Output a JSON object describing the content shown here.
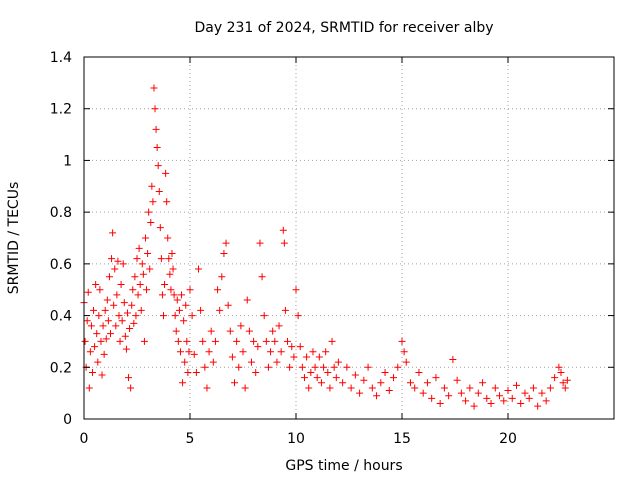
{
  "chart_data": {
    "type": "scatter",
    "title": "Day 231 of 2024, SRMTID for receiver alby",
    "xlabel": "GPS time / hours",
    "ylabel": "SRMTID / TECUs",
    "xlim": [
      0,
      25
    ],
    "ylim": [
      0,
      1.4
    ],
    "xticks": [
      0,
      5,
      10,
      15,
      20
    ],
    "xtick_labels": [
      "0",
      "5",
      "10",
      "15",
      "20"
    ],
    "yticks": [
      0,
      0.2,
      0.4,
      0.6,
      0.8,
      1.0,
      1.2,
      1.4
    ],
    "ytick_labels": [
      "0",
      "0.2",
      "0.4",
      "0.6",
      "0.8",
      "1",
      "1.2",
      "1.4"
    ],
    "grid": true,
    "marker": "+",
    "color": "#ff0000",
    "series": [
      {
        "name": "SRMTID",
        "points": [
          [
            0.0,
            0.45
          ],
          [
            0.05,
            0.3
          ],
          [
            0.1,
            0.2
          ],
          [
            0.15,
            0.38
          ],
          [
            0.2,
            0.49
          ],
          [
            0.25,
            0.12
          ],
          [
            0.3,
            0.26
          ],
          [
            0.35,
            0.36
          ],
          [
            0.4,
            0.18
          ],
          [
            0.45,
            0.42
          ],
          [
            0.5,
            0.28
          ],
          [
            0.55,
            0.52
          ],
          [
            0.6,
            0.33
          ],
          [
            0.65,
            0.22
          ],
          [
            0.7,
            0.4
          ],
          [
            0.75,
            0.5
          ],
          [
            0.8,
            0.3
          ],
          [
            0.85,
            0.17
          ],
          [
            0.9,
            0.36
          ],
          [
            0.95,
            0.25
          ],
          [
            1.0,
            0.42
          ],
          [
            1.05,
            0.31
          ],
          [
            1.1,
            0.46
          ],
          [
            1.15,
            0.38
          ],
          [
            1.2,
            0.55
          ],
          [
            1.25,
            0.33
          ],
          [
            1.3,
            0.62
          ],
          [
            1.35,
            0.72
          ],
          [
            1.4,
            0.44
          ],
          [
            1.45,
            0.58
          ],
          [
            1.5,
            0.36
          ],
          [
            1.55,
            0.48
          ],
          [
            1.6,
            0.61
          ],
          [
            1.65,
            0.4
          ],
          [
            1.7,
            0.3
          ],
          [
            1.75,
            0.52
          ],
          [
            1.8,
            0.38
          ],
          [
            1.85,
            0.6
          ],
          [
            1.9,
            0.45
          ],
          [
            1.95,
            0.32
          ],
          [
            2.0,
            0.27
          ],
          [
            2.05,
            0.41
          ],
          [
            2.1,
            0.16
          ],
          [
            2.15,
            0.35
          ],
          [
            2.2,
            0.12
          ],
          [
            2.25,
            0.44
          ],
          [
            2.3,
            0.5
          ],
          [
            2.35,
            0.37
          ],
          [
            2.4,
            0.55
          ],
          [
            2.45,
            0.4
          ],
          [
            2.5,
            0.62
          ],
          [
            2.55,
            0.48
          ],
          [
            2.6,
            0.66
          ],
          [
            2.65,
            0.52
          ],
          [
            2.7,
            0.42
          ],
          [
            2.75,
            0.6
          ],
          [
            2.8,
            0.56
          ],
          [
            2.85,
            0.3
          ],
          [
            2.9,
            0.7
          ],
          [
            2.95,
            0.5
          ],
          [
            3.0,
            0.64
          ],
          [
            3.05,
            0.8
          ],
          [
            3.1,
            0.58
          ],
          [
            3.15,
            0.76
          ],
          [
            3.2,
            0.9
          ],
          [
            3.25,
            0.84
          ],
          [
            3.3,
            1.28
          ],
          [
            3.35,
            1.2
          ],
          [
            3.4,
            1.12
          ],
          [
            3.45,
            1.05
          ],
          [
            3.5,
            0.98
          ],
          [
            3.55,
            0.88
          ],
          [
            3.6,
            0.74
          ],
          [
            3.65,
            0.62
          ],
          [
            3.7,
            0.48
          ],
          [
            3.75,
            0.4
          ],
          [
            3.8,
            0.52
          ],
          [
            3.85,
            0.95
          ],
          [
            3.9,
            0.84
          ],
          [
            3.95,
            0.7
          ],
          [
            4.0,
            0.62
          ],
          [
            4.05,
            0.56
          ],
          [
            4.1,
            0.5
          ],
          [
            4.15,
            0.64
          ],
          [
            4.2,
            0.58
          ],
          [
            4.25,
            0.48
          ],
          [
            4.3,
            0.4
          ],
          [
            4.35,
            0.34
          ],
          [
            4.4,
            0.46
          ],
          [
            4.45,
            0.3
          ],
          [
            4.5,
            0.42
          ],
          [
            4.55,
            0.26
          ],
          [
            4.6,
            0.48
          ],
          [
            4.65,
            0.14
          ],
          [
            4.7,
            0.38
          ],
          [
            4.75,
            0.22
          ],
          [
            4.8,
            0.44
          ],
          [
            4.85,
            0.3
          ],
          [
            4.9,
            0.18
          ],
          [
            4.95,
            0.26
          ],
          [
            5.0,
            0.5
          ],
          [
            5.1,
            0.4
          ],
          [
            5.2,
            0.25
          ],
          [
            5.3,
            0.18
          ],
          [
            5.4,
            0.58
          ],
          [
            5.5,
            0.42
          ],
          [
            5.6,
            0.3
          ],
          [
            5.7,
            0.2
          ],
          [
            5.8,
            0.12
          ],
          [
            5.9,
            0.26
          ],
          [
            6.0,
            0.34
          ],
          [
            6.1,
            0.22
          ],
          [
            6.2,
            0.3
          ],
          [
            6.3,
            0.5
          ],
          [
            6.4,
            0.42
          ],
          [
            6.5,
            0.55
          ],
          [
            6.6,
            0.64
          ],
          [
            6.7,
            0.68
          ],
          [
            6.8,
            0.44
          ],
          [
            6.9,
            0.34
          ],
          [
            7.0,
            0.24
          ],
          [
            7.1,
            0.14
          ],
          [
            7.2,
            0.3
          ],
          [
            7.3,
            0.2
          ],
          [
            7.4,
            0.36
          ],
          [
            7.5,
            0.26
          ],
          [
            7.6,
            0.12
          ],
          [
            7.7,
            0.46
          ],
          [
            7.8,
            0.34
          ],
          [
            7.9,
            0.22
          ],
          [
            8.0,
            0.3
          ],
          [
            8.1,
            0.18
          ],
          [
            8.2,
            0.28
          ],
          [
            8.3,
            0.68
          ],
          [
            8.4,
            0.55
          ],
          [
            8.5,
            0.4
          ],
          [
            8.6,
            0.3
          ],
          [
            8.7,
            0.2
          ],
          [
            8.8,
            0.26
          ],
          [
            8.9,
            0.34
          ],
          [
            9.0,
            0.3
          ],
          [
            9.1,
            0.22
          ],
          [
            9.2,
            0.36
          ],
          [
            9.3,
            0.26
          ],
          [
            9.4,
            0.73
          ],
          [
            9.45,
            0.68
          ],
          [
            9.5,
            0.42
          ],
          [
            9.6,
            0.3
          ],
          [
            9.7,
            0.2
          ],
          [
            9.8,
            0.28
          ],
          [
            9.9,
            0.24
          ],
          [
            10.0,
            0.5
          ],
          [
            10.1,
            0.4
          ],
          [
            10.2,
            0.28
          ],
          [
            10.3,
            0.2
          ],
          [
            10.4,
            0.16
          ],
          [
            10.5,
            0.24
          ],
          [
            10.6,
            0.12
          ],
          [
            10.7,
            0.18
          ],
          [
            10.8,
            0.26
          ],
          [
            10.9,
            0.2
          ],
          [
            11.0,
            0.16
          ],
          [
            11.1,
            0.24
          ],
          [
            11.2,
            0.14
          ],
          [
            11.3,
            0.2
          ],
          [
            11.4,
            0.26
          ],
          [
            11.5,
            0.18
          ],
          [
            11.6,
            0.12
          ],
          [
            11.7,
            0.3
          ],
          [
            11.8,
            0.2
          ],
          [
            11.9,
            0.16
          ],
          [
            12.0,
            0.22
          ],
          [
            12.2,
            0.14
          ],
          [
            12.4,
            0.2
          ],
          [
            12.6,
            0.12
          ],
          [
            12.8,
            0.17
          ],
          [
            13.0,
            0.1
          ],
          [
            13.2,
            0.15
          ],
          [
            13.4,
            0.2
          ],
          [
            13.6,
            0.12
          ],
          [
            13.8,
            0.09
          ],
          [
            14.0,
            0.14
          ],
          [
            14.2,
            0.18
          ],
          [
            14.4,
            0.11
          ],
          [
            14.6,
            0.16
          ],
          [
            14.8,
            0.2
          ],
          [
            15.0,
            0.3
          ],
          [
            15.1,
            0.26
          ],
          [
            15.2,
            0.22
          ],
          [
            15.4,
            0.14
          ],
          [
            15.6,
            0.12
          ],
          [
            15.8,
            0.18
          ],
          [
            16.0,
            0.1
          ],
          [
            16.2,
            0.14
          ],
          [
            16.4,
            0.08
          ],
          [
            16.6,
            0.16
          ],
          [
            16.8,
            0.06
          ],
          [
            17.0,
            0.12
          ],
          [
            17.2,
            0.09
          ],
          [
            17.4,
            0.23
          ],
          [
            17.6,
            0.15
          ],
          [
            17.8,
            0.1
          ],
          [
            18.0,
            0.07
          ],
          [
            18.2,
            0.12
          ],
          [
            18.4,
            0.05
          ],
          [
            18.6,
            0.1
          ],
          [
            18.8,
            0.14
          ],
          [
            19.0,
            0.08
          ],
          [
            19.2,
            0.06
          ],
          [
            19.4,
            0.12
          ],
          [
            19.6,
            0.09
          ],
          [
            19.8,
            0.07
          ],
          [
            20.0,
            0.11
          ],
          [
            20.2,
            0.08
          ],
          [
            20.4,
            0.13
          ],
          [
            20.6,
            0.06
          ],
          [
            20.8,
            0.1
          ],
          [
            21.0,
            0.08
          ],
          [
            21.2,
            0.12
          ],
          [
            21.4,
            0.05
          ],
          [
            21.6,
            0.1
          ],
          [
            21.8,
            0.07
          ],
          [
            22.0,
            0.12
          ],
          [
            22.2,
            0.16
          ],
          [
            22.4,
            0.2
          ],
          [
            22.5,
            0.18
          ],
          [
            22.6,
            0.14
          ],
          [
            22.7,
            0.12
          ],
          [
            22.8,
            0.15
          ]
        ]
      }
    ]
  }
}
